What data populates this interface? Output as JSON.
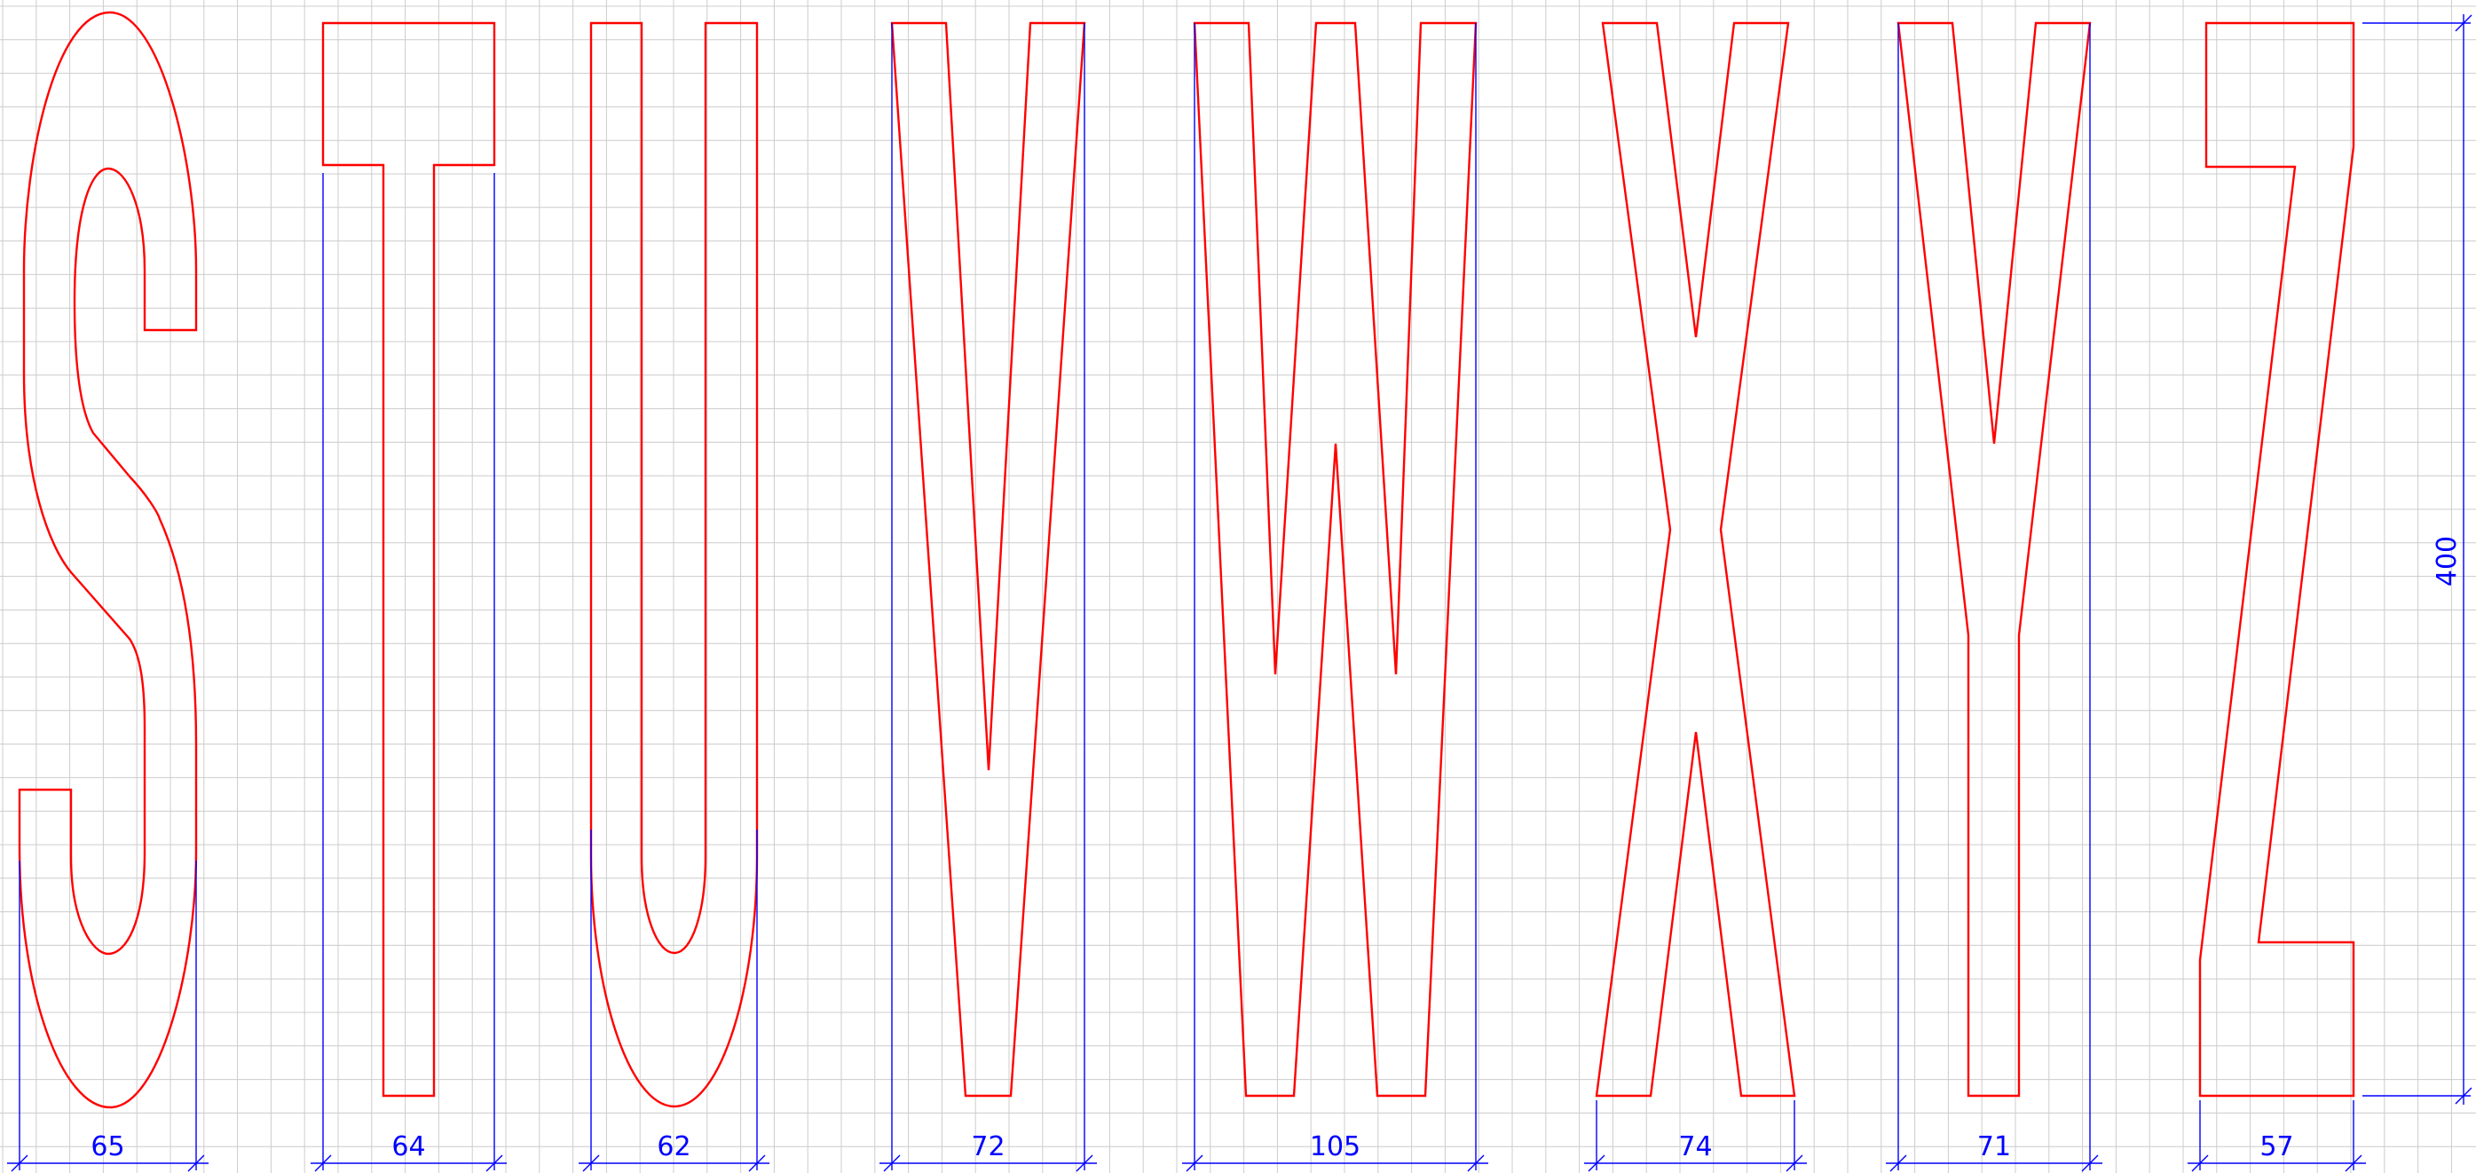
{
  "sheet": {
    "grid_color": "#cccccc",
    "glyph_color": "#ff0000",
    "dimension_color": "#0000ff",
    "background": "#ffffff"
  },
  "letters": [
    {
      "glyph": "S",
      "width_label": "65"
    },
    {
      "glyph": "T",
      "width_label": "64"
    },
    {
      "glyph": "U",
      "width_label": "62"
    },
    {
      "glyph": "V",
      "width_label": "72"
    },
    {
      "glyph": "W",
      "width_label": "105"
    },
    {
      "glyph": "X",
      "width_label": "74"
    },
    {
      "glyph": "Y",
      "width_label": "71"
    },
    {
      "glyph": "Z",
      "width_label": "57"
    }
  ],
  "height_dimension": {
    "label": "400"
  }
}
